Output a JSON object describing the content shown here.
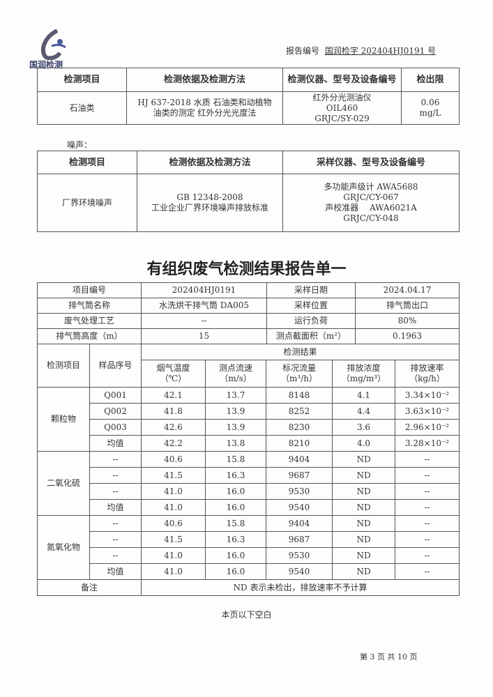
{
  "header": {
    "company": "国润检测",
    "report_no_label": "报告编号",
    "report_no": "国润检字 202404HJ0191 号"
  },
  "table1": {
    "headers": [
      "检测项目",
      "检测依据及检测方法",
      "检测仪器、型号及设备编号",
      "检出限"
    ],
    "row": {
      "item": "石油类",
      "method": "HJ 637-2018 水质 石油类和动植物油类的测定 红外分光光度法",
      "instrument": [
        "红外分光测油仪",
        "OIL460",
        "GRJC/SY-029"
      ],
      "limit": [
        "0.06",
        "mg/L"
      ]
    }
  },
  "noise": {
    "label": "噪声：",
    "headers": [
      "检测项目",
      "检测依据及检测方法",
      "采样仪器、型号及设备编号"
    ],
    "row": {
      "item": "厂界环境噪声",
      "method": [
        "GB 12348-2008",
        "工业企业厂界环境噪声排放标准"
      ],
      "instrument": [
        "多功能声级计 AWA5688",
        "GRJC/CY-067",
        "声校准器　 AWA6021A",
        "GRJC/CY-048"
      ]
    }
  },
  "title": "有组织废气检测结果报告单一",
  "info": [
    [
      "项目编号",
      "202404HJ0191",
      "采样日期",
      "2024.04.17"
    ],
    [
      "排气筒名称",
      "水洗烘干排气筒 DA005",
      "采样位置",
      "排气筒出口"
    ],
    [
      "废气处理工艺",
      "--",
      "运行负荷",
      "80%"
    ],
    [
      "排气筒高度（m）",
      "15",
      "测点截面积（m²）",
      "0.1963"
    ]
  ],
  "results": {
    "col_item": "检测项目",
    "col_sample": "样品序号",
    "group": "检测结果",
    "columns": [
      [
        "烟气温度",
        "（℃）"
      ],
      [
        "测点流速",
        "（m/s）"
      ],
      [
        "标况流量",
        "（m³/h）"
      ],
      [
        "排放浓度",
        "（mg/m³）"
      ],
      [
        "排放速率",
        "（kg/h）"
      ]
    ],
    "groups": [
      {
        "item": "颗粒物",
        "rows": [
          [
            "Q001",
            "42.1",
            "13.7",
            "8148",
            "4.1",
            "3.34×10⁻²"
          ],
          [
            "Q002",
            "41.8",
            "13.9",
            "8252",
            "4.4",
            "3.63×10⁻²"
          ],
          [
            "Q003",
            "42.6",
            "13.9",
            "8230",
            "3.6",
            "2.96×10⁻²"
          ],
          [
            "均值",
            "42.2",
            "13.8",
            "8210",
            "4.0",
            "3.28×10⁻²"
          ]
        ]
      },
      {
        "item": "二氧化硫",
        "rows": [
          [
            "--",
            "40.6",
            "15.8",
            "9404",
            "ND",
            "--"
          ],
          [
            "--",
            "41.5",
            "16.3",
            "9687",
            "ND",
            "--"
          ],
          [
            "--",
            "41.0",
            "16.0",
            "9530",
            "ND",
            "--"
          ],
          [
            "均值",
            "41.0",
            "16.0",
            "9540",
            "ND",
            "--"
          ]
        ]
      },
      {
        "item": "氮氧化物",
        "rows": [
          [
            "--",
            "40.6",
            "15.8",
            "9404",
            "ND",
            "--"
          ],
          [
            "--",
            "41.5",
            "16.3",
            "9687",
            "ND",
            "--"
          ],
          [
            "--",
            "41.0",
            "16.0",
            "9530",
            "ND",
            "--"
          ],
          [
            "均值",
            "41.0",
            "16.0",
            "9540",
            "ND",
            "--"
          ]
        ]
      }
    ],
    "remark_label": "备注",
    "remark": "ND 表示未检出，排放速率不予计算"
  },
  "blank_note": "本页以下空白",
  "footer": "第 3 页 共 10 页"
}
